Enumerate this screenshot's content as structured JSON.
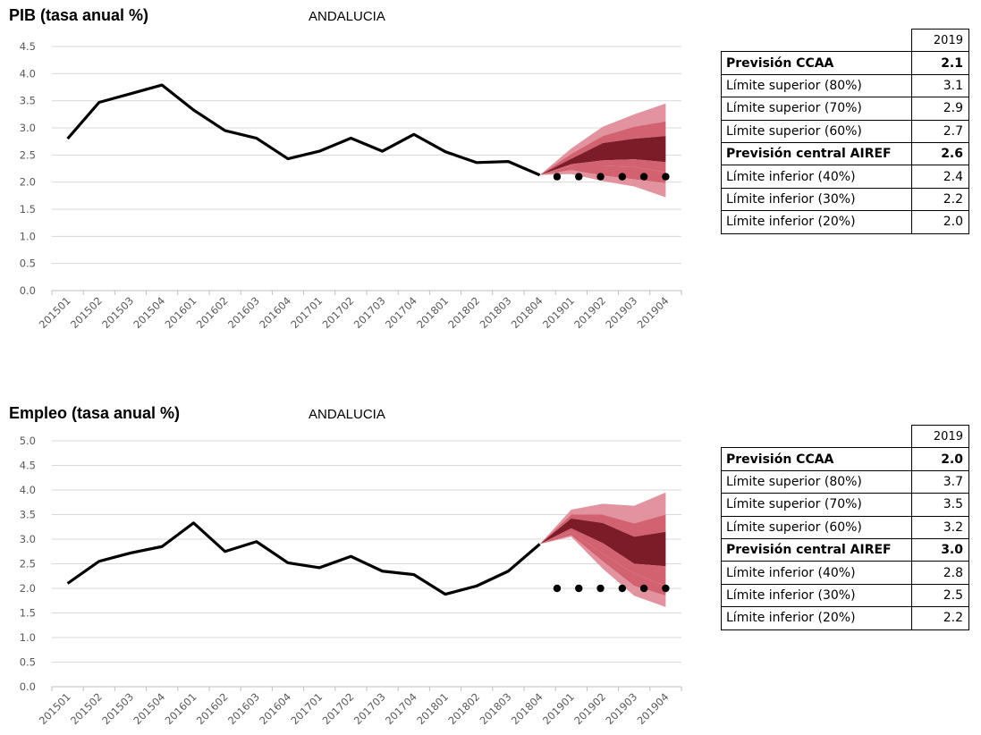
{
  "chart_data": [
    {
      "type": "line",
      "title": "PIB (tasa anual %)",
      "region": "ANDALUCIA",
      "categories": [
        "201501",
        "201502",
        "201503",
        "201504",
        "201601",
        "201602",
        "201603",
        "201604",
        "201701",
        "201702",
        "201703",
        "201704",
        "201801",
        "201802",
        "201803",
        "201804",
        "201901",
        "201902",
        "201903",
        "201904"
      ],
      "ylim": [
        0,
        4.5
      ],
      "yticks": [
        "0.0",
        "0.5",
        "1.0",
        "1.5",
        "2.0",
        "2.5",
        "3.0",
        "3.5",
        "4.0",
        "4.5"
      ],
      "grid": true,
      "series": [
        {
          "values": [
            2.8,
            3.47,
            3.63,
            3.79,
            3.33,
            2.95,
            2.81,
            2.43,
            2.57,
            2.81,
            2.57,
            2.88,
            2.56,
            2.36,
            2.38,
            2.13,
            null,
            null,
            null,
            null
          ]
        },
        {
          "values": [
            null,
            null,
            null,
            null,
            null,
            null,
            null,
            null,
            null,
            null,
            null,
            null,
            null,
            null,
            null,
            null,
            2.1,
            2.1,
            2.1,
            2.1
          ]
        }
      ],
      "fan": {
        "x_index": [
          15,
          16,
          17,
          18,
          19
        ],
        "upper80": [
          2.13,
          2.62,
          3.02,
          3.25,
          3.45
        ],
        "upper70": [
          2.13,
          2.52,
          2.85,
          3.02,
          3.12
        ],
        "upper60": [
          2.13,
          2.43,
          2.72,
          2.8,
          2.85
        ],
        "central": [
          2.13,
          2.33,
          2.4,
          2.42,
          2.37
        ],
        "lower40": [
          2.13,
          2.3,
          2.3,
          2.28,
          2.18
        ],
        "lower30": [
          2.13,
          2.22,
          2.12,
          2.05,
          1.98
        ],
        "lower20": [
          2.13,
          2.15,
          2.02,
          1.92,
          1.72
        ]
      },
      "fan_colors": {
        "outer": "#e2939f",
        "middle": "#d2626f",
        "inner": "#7b1c28"
      },
      "line_color": "#000000"
    },
    {
      "type": "line",
      "title": "Empleo (tasa anual %)",
      "region": "ANDALUCIA",
      "categories": [
        "201501",
        "201502",
        "201503",
        "201504",
        "201601",
        "201602",
        "201603",
        "201604",
        "201701",
        "201702",
        "201703",
        "201704",
        "201801",
        "201802",
        "201803",
        "201804",
        "201901",
        "201902",
        "201903",
        "201904"
      ],
      "ylim": [
        0,
        5.0
      ],
      "yticks": [
        "0.0",
        "0.5",
        "1.0",
        "1.5",
        "2.0",
        "2.5",
        "3.0",
        "3.5",
        "4.0",
        "4.5",
        "5.0"
      ],
      "grid": true,
      "series": [
        {
          "values": [
            2.1,
            2.55,
            2.72,
            2.85,
            3.33,
            2.75,
            2.95,
            2.52,
            2.42,
            2.65,
            2.35,
            2.28,
            1.88,
            2.05,
            2.35,
            2.9,
            null,
            null,
            null,
            null
          ]
        },
        {
          "values": [
            null,
            null,
            null,
            null,
            null,
            null,
            null,
            null,
            null,
            null,
            null,
            null,
            null,
            null,
            null,
            null,
            2.0,
            2.0,
            2.0,
            2.0
          ]
        }
      ],
      "fan": {
        "x_index": [
          15,
          16,
          17,
          18,
          19
        ],
        "upper80": [
          2.9,
          3.6,
          3.72,
          3.68,
          3.95
        ],
        "upper70": [
          2.9,
          3.5,
          3.5,
          3.32,
          3.5
        ],
        "upper60": [
          2.9,
          3.42,
          3.33,
          3.05,
          3.15
        ],
        "central": [
          2.9,
          3.22,
          2.92,
          2.5,
          2.45
        ],
        "lower40": [
          2.9,
          3.15,
          2.7,
          2.3,
          2.05
        ],
        "lower30": [
          2.9,
          3.08,
          2.55,
          2.05,
          1.85
        ],
        "lower20": [
          2.9,
          3.05,
          2.4,
          1.85,
          1.62
        ]
      },
      "fan_colors": {
        "outer": "#e2939f",
        "middle": "#d2626f",
        "inner": "#7b1c28"
      },
      "line_color": "#000000"
    }
  ],
  "tables": [
    {
      "year": "2019",
      "rows": [
        {
          "label": "Previsión CCAA",
          "value": "2.1",
          "bold": true
        },
        {
          "label": "Límite superior (80%)",
          "value": "3.1",
          "bold": false
        },
        {
          "label": "Límite superior (70%)",
          "value": "2.9",
          "bold": false
        },
        {
          "label": "Límite superior (60%)",
          "value": "2.7",
          "bold": false
        },
        {
          "label": "Previsión central AIREF",
          "value": "2.6",
          "bold": true
        },
        {
          "label": "Límite inferior (40%)",
          "value": "2.4",
          "bold": false
        },
        {
          "label": "Límite inferior (30%)",
          "value": "2.2",
          "bold": false
        },
        {
          "label": "Límite inferior (20%)",
          "value": "2.0",
          "bold": false
        }
      ]
    },
    {
      "year": "2019",
      "rows": [
        {
          "label": "Previsión CCAA",
          "value": "2.0",
          "bold": true
        },
        {
          "label": "Límite superior (80%)",
          "value": "3.7",
          "bold": false
        },
        {
          "label": "Límite superior (70%)",
          "value": "3.5",
          "bold": false
        },
        {
          "label": "Límite superior (60%)",
          "value": "3.2",
          "bold": false
        },
        {
          "label": "Previsión central AIREF",
          "value": "3.0",
          "bold": true
        },
        {
          "label": "Límite inferior (40%)",
          "value": "2.8",
          "bold": false
        },
        {
          "label": "Límite inferior (30%)",
          "value": "2.5",
          "bold": false
        },
        {
          "label": "Límite inferior (20%)",
          "value": "2.2",
          "bold": false
        }
      ]
    }
  ]
}
